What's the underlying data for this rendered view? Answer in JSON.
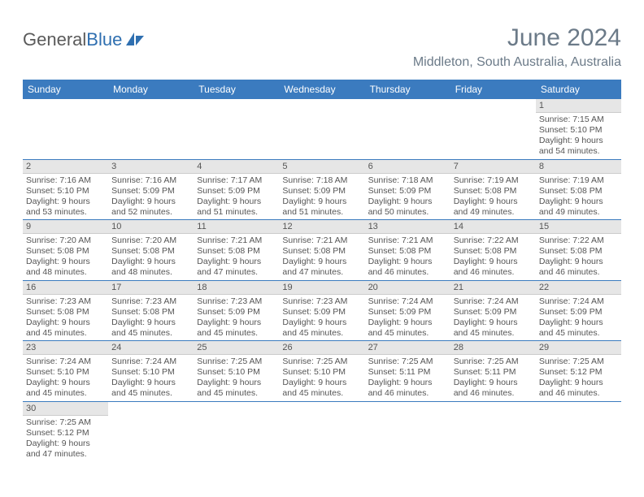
{
  "logo": {
    "word1": "General",
    "word2": "Blue"
  },
  "title": "June 2024",
  "location": "Middleton, South Australia, Australia",
  "colors": {
    "header_bg": "#3b7bbf",
    "header_text": "#ffffff",
    "daynum_bg": "#e6e6e6",
    "row_border": "#3b7bbf",
    "title_color": "#6b7a88",
    "body_text": "#555555"
  },
  "weekdays": [
    "Sunday",
    "Monday",
    "Tuesday",
    "Wednesday",
    "Thursday",
    "Friday",
    "Saturday"
  ],
  "weeks": [
    [
      null,
      null,
      null,
      null,
      null,
      null,
      {
        "n": "1",
        "sr": "7:15 AM",
        "ss": "5:10 PM",
        "dl": "9 hours and 54 minutes."
      }
    ],
    [
      {
        "n": "2",
        "sr": "7:16 AM",
        "ss": "5:10 PM",
        "dl": "9 hours and 53 minutes."
      },
      {
        "n": "3",
        "sr": "7:16 AM",
        "ss": "5:09 PM",
        "dl": "9 hours and 52 minutes."
      },
      {
        "n": "4",
        "sr": "7:17 AM",
        "ss": "5:09 PM",
        "dl": "9 hours and 51 minutes."
      },
      {
        "n": "5",
        "sr": "7:18 AM",
        "ss": "5:09 PM",
        "dl": "9 hours and 51 minutes."
      },
      {
        "n": "6",
        "sr": "7:18 AM",
        "ss": "5:09 PM",
        "dl": "9 hours and 50 minutes."
      },
      {
        "n": "7",
        "sr": "7:19 AM",
        "ss": "5:08 PM",
        "dl": "9 hours and 49 minutes."
      },
      {
        "n": "8",
        "sr": "7:19 AM",
        "ss": "5:08 PM",
        "dl": "9 hours and 49 minutes."
      }
    ],
    [
      {
        "n": "9",
        "sr": "7:20 AM",
        "ss": "5:08 PM",
        "dl": "9 hours and 48 minutes."
      },
      {
        "n": "10",
        "sr": "7:20 AM",
        "ss": "5:08 PM",
        "dl": "9 hours and 48 minutes."
      },
      {
        "n": "11",
        "sr": "7:21 AM",
        "ss": "5:08 PM",
        "dl": "9 hours and 47 minutes."
      },
      {
        "n": "12",
        "sr": "7:21 AM",
        "ss": "5:08 PM",
        "dl": "9 hours and 47 minutes."
      },
      {
        "n": "13",
        "sr": "7:21 AM",
        "ss": "5:08 PM",
        "dl": "9 hours and 46 minutes."
      },
      {
        "n": "14",
        "sr": "7:22 AM",
        "ss": "5:08 PM",
        "dl": "9 hours and 46 minutes."
      },
      {
        "n": "15",
        "sr": "7:22 AM",
        "ss": "5:08 PM",
        "dl": "9 hours and 46 minutes."
      }
    ],
    [
      {
        "n": "16",
        "sr": "7:23 AM",
        "ss": "5:08 PM",
        "dl": "9 hours and 45 minutes."
      },
      {
        "n": "17",
        "sr": "7:23 AM",
        "ss": "5:08 PM",
        "dl": "9 hours and 45 minutes."
      },
      {
        "n": "18",
        "sr": "7:23 AM",
        "ss": "5:09 PM",
        "dl": "9 hours and 45 minutes."
      },
      {
        "n": "19",
        "sr": "7:23 AM",
        "ss": "5:09 PM",
        "dl": "9 hours and 45 minutes."
      },
      {
        "n": "20",
        "sr": "7:24 AM",
        "ss": "5:09 PM",
        "dl": "9 hours and 45 minutes."
      },
      {
        "n": "21",
        "sr": "7:24 AM",
        "ss": "5:09 PM",
        "dl": "9 hours and 45 minutes."
      },
      {
        "n": "22",
        "sr": "7:24 AM",
        "ss": "5:09 PM",
        "dl": "9 hours and 45 minutes."
      }
    ],
    [
      {
        "n": "23",
        "sr": "7:24 AM",
        "ss": "5:10 PM",
        "dl": "9 hours and 45 minutes."
      },
      {
        "n": "24",
        "sr": "7:24 AM",
        "ss": "5:10 PM",
        "dl": "9 hours and 45 minutes."
      },
      {
        "n": "25",
        "sr": "7:25 AM",
        "ss": "5:10 PM",
        "dl": "9 hours and 45 minutes."
      },
      {
        "n": "26",
        "sr": "7:25 AM",
        "ss": "5:10 PM",
        "dl": "9 hours and 45 minutes."
      },
      {
        "n": "27",
        "sr": "7:25 AM",
        "ss": "5:11 PM",
        "dl": "9 hours and 46 minutes."
      },
      {
        "n": "28",
        "sr": "7:25 AM",
        "ss": "5:11 PM",
        "dl": "9 hours and 46 minutes."
      },
      {
        "n": "29",
        "sr": "7:25 AM",
        "ss": "5:12 PM",
        "dl": "9 hours and 46 minutes."
      }
    ],
    [
      {
        "n": "30",
        "sr": "7:25 AM",
        "ss": "5:12 PM",
        "dl": "9 hours and 47 minutes."
      },
      null,
      null,
      null,
      null,
      null,
      null
    ]
  ],
  "labels": {
    "sunrise": "Sunrise:",
    "sunset": "Sunset:",
    "daylight": "Daylight:"
  }
}
